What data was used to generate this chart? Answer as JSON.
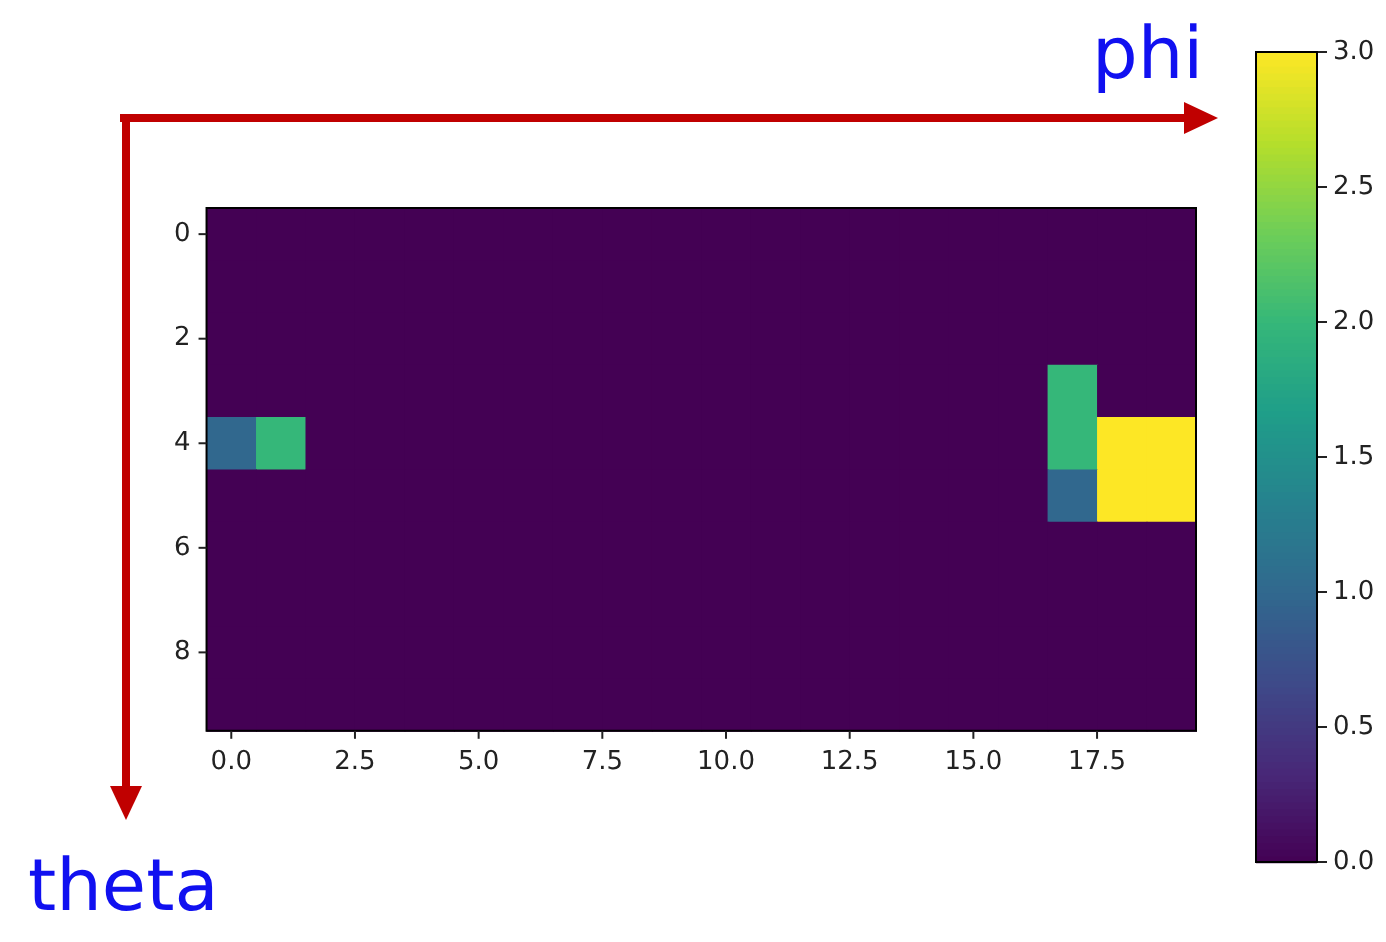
{
  "chart_data": {
    "type": "heatmap",
    "xlabel": "phi",
    "ylabel": "theta",
    "xlim": [
      -0.5,
      19.5
    ],
    "ylim": [
      9.5,
      -0.5
    ],
    "xticks": [
      {
        "value": 0,
        "label": "0.0"
      },
      {
        "value": 2.5,
        "label": "2.5"
      },
      {
        "value": 5,
        "label": "5.0"
      },
      {
        "value": 7.5,
        "label": "7.5"
      },
      {
        "value": 10,
        "label": "10.0"
      },
      {
        "value": 12.5,
        "label": "12.5"
      },
      {
        "value": 15,
        "label": "15.0"
      },
      {
        "value": 17.5,
        "label": "17.5"
      }
    ],
    "yticks": [
      0,
      2,
      4,
      6,
      8
    ],
    "clim": [
      0,
      3
    ],
    "cticks": [
      {
        "value": 0,
        "label": "0.0"
      },
      {
        "value": 0.5,
        "label": "0.5"
      },
      {
        "value": 1,
        "label": "1.0"
      },
      {
        "value": 1.5,
        "label": "1.5"
      },
      {
        "value": 2,
        "label": "2.0"
      },
      {
        "value": 2.5,
        "label": "2.5"
      },
      {
        "value": 3,
        "label": "3.0"
      }
    ],
    "cells": [
      [
        0,
        0,
        0,
        0,
        0,
        0,
        0,
        0,
        0,
        0,
        0,
        0,
        0,
        0,
        0,
        0,
        0,
        0,
        0,
        0
      ],
      [
        0,
        0,
        0,
        0,
        0,
        0,
        0,
        0,
        0,
        0,
        0,
        0,
        0,
        0,
        0,
        0,
        0,
        0,
        0,
        0
      ],
      [
        0,
        0,
        0,
        0,
        0,
        0,
        0,
        0,
        0,
        0,
        0,
        0,
        0,
        0,
        0,
        0,
        0,
        0,
        0,
        0
      ],
      [
        0,
        0,
        0,
        0,
        0,
        0,
        0,
        0,
        0,
        0,
        0,
        0,
        0,
        0,
        0,
        0,
        0,
        2,
        0,
        0
      ],
      [
        1,
        2,
        0,
        0,
        0,
        0,
        0,
        0,
        0,
        0,
        0,
        0,
        0,
        0,
        0,
        0,
        0,
        2,
        3,
        3
      ],
      [
        0,
        0,
        0,
        0,
        0,
        0,
        0,
        0,
        0,
        0,
        0,
        0,
        0,
        0,
        0,
        0,
        0,
        1,
        3,
        3
      ],
      [
        0,
        0,
        0,
        0,
        0,
        0,
        0,
        0,
        0,
        0,
        0,
        0,
        0,
        0,
        0,
        0,
        0,
        0,
        0,
        0
      ],
      [
        0,
        0,
        0,
        0,
        0,
        0,
        0,
        0,
        0,
        0,
        0,
        0,
        0,
        0,
        0,
        0,
        0,
        0,
        0,
        0
      ],
      [
        0,
        0,
        0,
        0,
        0,
        0,
        0,
        0,
        0,
        0,
        0,
        0,
        0,
        0,
        0,
        0,
        0,
        0,
        0,
        0
      ],
      [
        0,
        0,
        0,
        0,
        0,
        0,
        0,
        0,
        0,
        0,
        0,
        0,
        0,
        0,
        0,
        0,
        0,
        0,
        0,
        0
      ]
    ]
  }
}
